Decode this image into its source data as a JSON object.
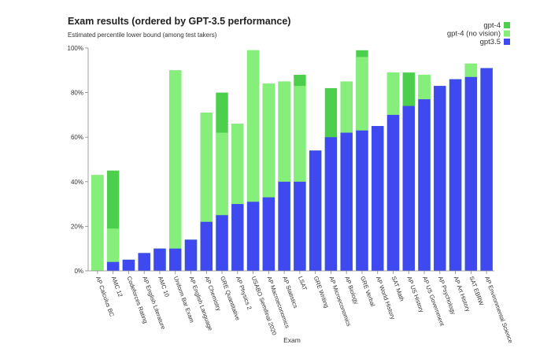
{
  "chart_data": {
    "type": "bar",
    "stacked": "overlay",
    "title": "Exam results (ordered by GPT-3.5 performance)",
    "subtitle": "Estimated percentile lower bound (among test takers)",
    "xlabel": "Exam",
    "ylabel": "",
    "ylim": [
      0,
      100
    ],
    "yticks": [
      0,
      20,
      40,
      60,
      80,
      100
    ],
    "ytick_labels": [
      "0%",
      "20%",
      "40%",
      "60%",
      "80%",
      "100%"
    ],
    "grid": false,
    "legend_position": "top-right",
    "categories": [
      "AP Calculus BC",
      "AMC 12",
      "Codeforces Rating",
      "AP English Literature",
      "AMC 10",
      "Uniform Bar Exam",
      "AP English Language",
      "AP Chemistry",
      "GRE Quantitative",
      "AP Physics 2",
      "USABO Semifinal 2020",
      "AP Macroeconomics",
      "AP Statistics",
      "LSAT",
      "GRE Writing",
      "AP Microeconomics",
      "AP Biology",
      "GRE Verbal",
      "AP World History",
      "SAT Math",
      "AP US History",
      "AP US Government",
      "AP Psychology",
      "AP Art History",
      "SAT EBRW",
      "AP Environmental Science"
    ],
    "series": [
      {
        "name": "gpt-4",
        "color": "#4ccf4c",
        "values": [
          43,
          45,
          5,
          8,
          10,
          90,
          14,
          71,
          80,
          66,
          99,
          84,
          85,
          88,
          54,
          82,
          85,
          99,
          65,
          89,
          89,
          88,
          83,
          86,
          93,
          91
        ]
      },
      {
        "name": "gpt-4 (no vision)",
        "color": "#86ee7a",
        "values": [
          43,
          19,
          5,
          8,
          10,
          90,
          14,
          71,
          62,
          66,
          99,
          84,
          85,
          83,
          54,
          60,
          85,
          96,
          65,
          89,
          74,
          88,
          83,
          86,
          93,
          91
        ]
      },
      {
        "name": "gpt3.5",
        "color": "#3f49f0",
        "values": [
          0,
          4,
          5,
          8,
          10,
          10,
          14,
          22,
          25,
          30,
          31,
          33,
          40,
          40,
          54,
          60,
          62,
          63,
          65,
          70,
          74,
          77,
          83,
          86,
          87,
          91
        ]
      }
    ]
  }
}
